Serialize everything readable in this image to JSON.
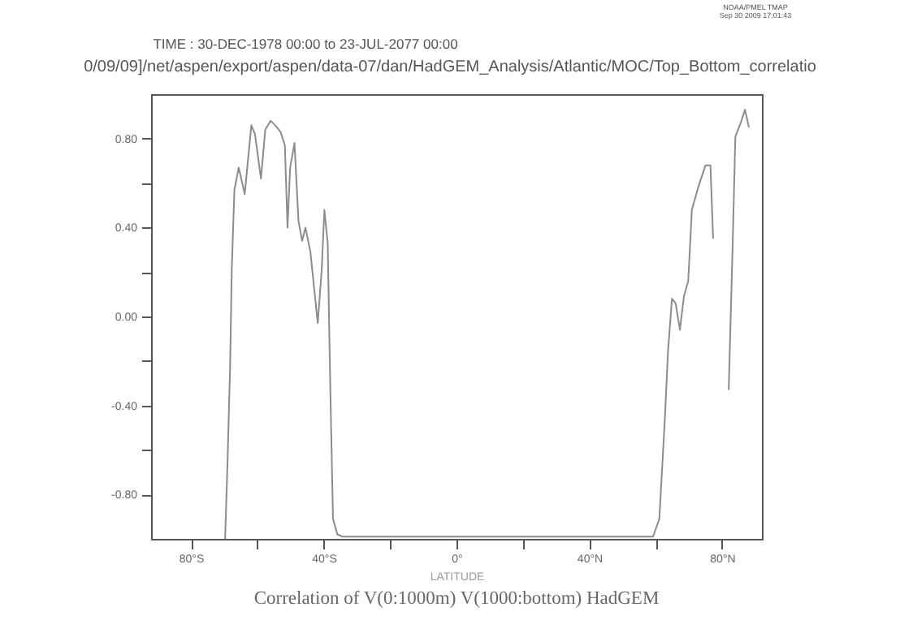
{
  "chart_data": {
    "type": "line",
    "title": "Correlation of V(0:1000m) V(1000:bottom) HadGEM",
    "xlabel": "LATITUDE",
    "annotations": [
      "TIME : 30-DEC-1978 00:00 to 23-JUL-2077 00:00",
      "0/09/09]/net/aspen/export/aspen/data-07/dan/HadGEM_Analysis/Atlantic/MOC/Top_Bottom_correlatio",
      "NOAA/PMEL TMAP",
      "Sep 30 2009 17:01:43"
    ],
    "x": [
      -69.7,
      -69.0,
      -68.2,
      -67.7,
      -66.9,
      -65.6,
      -63.8,
      -61.8,
      -60.7,
      -58.9,
      -57.6,
      -56.0,
      -54.6,
      -53.0,
      -51.7,
      -50.9,
      -50.1,
      -48.8,
      -47.6,
      -46.5,
      -45.5,
      -44.0,
      -41.8,
      -40.6,
      -39.8,
      -38.8,
      -38.0,
      -37.2,
      -35.9,
      -34.3,
      -20,
      0,
      20,
      40,
      59.2,
      61.1,
      62.8,
      63.7,
      64.9,
      66.0,
      67.3,
      68.5,
      69.8,
      70.9,
      73.0,
      75.0,
      76.5,
      77.3,
      80.0,
      82.0,
      83.2,
      84.0,
      85.6,
      86.9,
      88.1
    ],
    "series": [
      {
        "color": "#8c8c8c",
        "values": [
          -1.0,
          -0.67,
          -0.23,
          0.21,
          0.57,
          0.67,
          0.55,
          0.86,
          0.82,
          0.62,
          0.84,
          0.88,
          0.86,
          0.83,
          0.77,
          0.4,
          0.67,
          0.78,
          0.43,
          0.34,
          0.4,
          0.29,
          -0.03,
          0.21,
          0.48,
          0.33,
          -0.33,
          -0.91,
          -0.98,
          -0.99,
          -0.99,
          -0.99,
          -0.99,
          -0.99,
          -0.99,
          -0.91,
          -0.45,
          -0.16,
          0.08,
          0.06,
          -0.06,
          0.09,
          0.16,
          0.48,
          0.59,
          0.68,
          0.68,
          0.35,
          null,
          -0.33,
          0.33,
          0.81,
          0.87,
          0.93,
          0.85
        ]
      }
    ],
    "xlim": [
      -92,
      92
    ],
    "xticks": [
      {
        "value": -80,
        "label": "80°S"
      },
      {
        "value": -60,
        "label": null
      },
      {
        "value": -40,
        "label": "40°S"
      },
      {
        "value": -20,
        "label": null
      },
      {
        "value": 0,
        "label": "0°"
      },
      {
        "value": 20,
        "label": null
      },
      {
        "value": 40,
        "label": "40°N"
      },
      {
        "value": 60,
        "label": null
      },
      {
        "value": 80,
        "label": "80°N"
      }
    ],
    "ylim": [
      -1.0,
      1.0
    ],
    "yticks": [
      {
        "value": -0.8,
        "label": "-0.80"
      },
      {
        "value": -0.6,
        "label": null
      },
      {
        "value": -0.4,
        "label": "-0.40"
      },
      {
        "value": -0.2,
        "label": null
      },
      {
        "value": 0,
        "label": "0.00"
      },
      {
        "value": 0.2,
        "label": null
      },
      {
        "value": 0.4,
        "label": "0.40"
      },
      {
        "value": 0.6,
        "label": null
      },
      {
        "value": 0.8,
        "label": "0.80"
      }
    ],
    "grid": false,
    "marker": "none",
    "line_style": "solid"
  }
}
